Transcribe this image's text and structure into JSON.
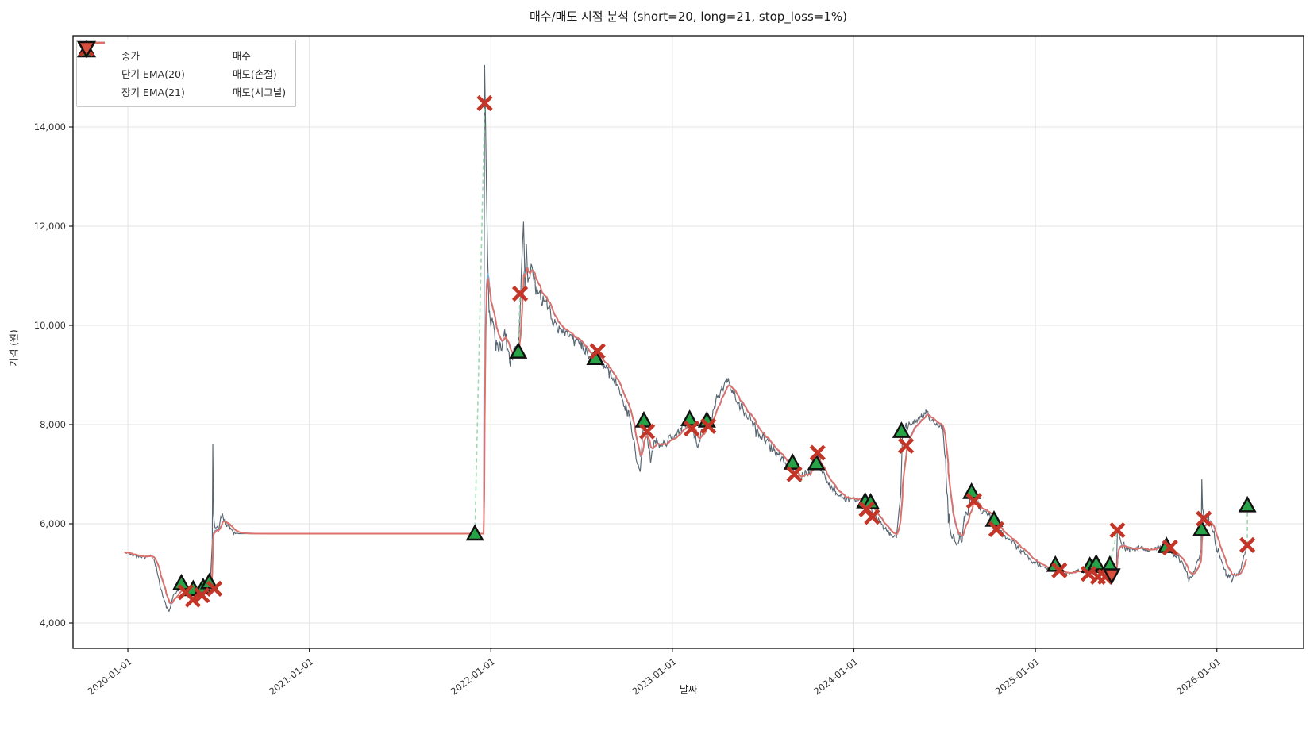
{
  "chart_data": {
    "type": "line",
    "title": "매수/매도 시점 분석 (short=20, long=21, stop_loss=1%)",
    "xlabel": "날짜",
    "ylabel": "가격 (원)",
    "x_tick_labels": [
      "2020-01-01",
      "2021-01-01",
      "2022-01-01",
      "2023-01-01",
      "2024-01-01",
      "2025-01-01",
      "2026-01-01"
    ],
    "x_tick_years": [
      0,
      1,
      2,
      3,
      4,
      5,
      6
    ],
    "y_ticks": [
      4000,
      6000,
      8000,
      10000,
      12000,
      14000
    ],
    "y_tick_labels": [
      "4,000",
      "6,000",
      "8,000",
      "10,000",
      "12,000",
      "14,000"
    ],
    "x_range_years": [
      -0.302,
      6.478
    ],
    "y_range": [
      3488,
      15840
    ],
    "grid": true,
    "legend_position": "upper-left",
    "legend": {
      "lines": [
        {
          "label": "종가",
          "color": "#4a5965"
        },
        {
          "label": "단기 EMA(20)",
          "color": "#6fb0dc"
        },
        {
          "label": "장기 EMA(21)",
          "color": "#df7069"
        }
      ],
      "markers": [
        {
          "label": "매수",
          "type": "triangle-up",
          "fill": "#27a347",
          "edge": "#111111"
        },
        {
          "label": "매도(손절)",
          "type": "x",
          "color": "#c33527"
        },
        {
          "label": "매도(시그널)",
          "type": "triangle-down",
          "fill": "#d94f3d",
          "edge": "#111111"
        }
      ]
    },
    "colors": {
      "close": "#4a5965",
      "ema_short": "#6fb0dc",
      "ema_long": "#df7069",
      "buy": "#27a347",
      "stop_loss": "#c33527",
      "sell_signal": "#d94f3d",
      "connector": "#8fd6a8",
      "grid": "#e3e3e3",
      "spine": "#1c1c1c",
      "tick_text": "#333333"
    },
    "ema_short_span_days": 20,
    "ema_long_span_days": 21,
    "close_control_points": [
      [
        -0.02,
        5420,
        50
      ],
      [
        0.03,
        5380,
        60
      ],
      [
        0.08,
        5330,
        70
      ],
      [
        0.13,
        5350,
        60
      ],
      [
        0.155,
        5150,
        60
      ],
      [
        0.18,
        4700,
        80
      ],
      [
        0.21,
        4350,
        60
      ],
      [
        0.228,
        4240,
        40
      ],
      [
        0.25,
        4550,
        70
      ],
      [
        0.28,
        4700,
        80
      ],
      [
        0.31,
        4750,
        80
      ],
      [
        0.34,
        4500,
        70
      ],
      [
        0.37,
        4600,
        80
      ],
      [
        0.4,
        4650,
        80
      ],
      [
        0.43,
        4700,
        90
      ],
      [
        0.455,
        4850,
        80
      ],
      [
        0.465,
        5600,
        0
      ],
      [
        0.468,
        7600,
        0
      ],
      [
        0.472,
        6200,
        0
      ],
      [
        0.48,
        5900,
        120
      ],
      [
        0.5,
        5850,
        150
      ],
      [
        0.52,
        6150,
        180
      ],
      [
        0.545,
        5950,
        150
      ],
      [
        0.565,
        5900,
        100
      ],
      [
        0.585,
        5820,
        40
      ],
      [
        0.61,
        5800,
        0
      ],
      [
        1.9,
        5800,
        0
      ],
      [
        1.96,
        5800,
        0
      ],
      [
        1.9655,
        15250,
        0
      ],
      [
        1.97,
        14200,
        100
      ],
      [
        1.976,
        12800,
        200
      ],
      [
        1.982,
        11300,
        250
      ],
      [
        1.99,
        10300,
        250
      ],
      [
        2.0,
        9800,
        250
      ],
      [
        2.01,
        10200,
        300
      ],
      [
        2.03,
        9600,
        250
      ],
      [
        2.05,
        9500,
        250
      ],
      [
        2.08,
        9800,
        300
      ],
      [
        2.11,
        9300,
        250
      ],
      [
        2.135,
        9550,
        200
      ],
      [
        2.149,
        9460,
        80
      ],
      [
        2.158,
        10000,
        100
      ],
      [
        2.166,
        10800,
        150
      ],
      [
        2.174,
        11600,
        120
      ],
      [
        2.18,
        12080,
        50
      ],
      [
        2.188,
        10850,
        150
      ],
      [
        2.196,
        11650,
        80
      ],
      [
        2.205,
        10850,
        250
      ],
      [
        2.222,
        11230,
        150
      ],
      [
        2.245,
        10750,
        200
      ],
      [
        2.275,
        10550,
        250
      ],
      [
        2.31,
        10430,
        200
      ],
      [
        2.35,
        10080,
        200
      ],
      [
        2.4,
        9880,
        200
      ],
      [
        2.45,
        9750,
        200
      ],
      [
        2.5,
        9580,
        180
      ],
      [
        2.545,
        9400,
        180
      ],
      [
        2.576,
        9340,
        100
      ],
      [
        2.586,
        9480,
        80
      ],
      [
        2.61,
        9280,
        180
      ],
      [
        2.65,
        9080,
        200
      ],
      [
        2.69,
        8850,
        200
      ],
      [
        2.72,
        8550,
        200
      ],
      [
        2.76,
        8150,
        250
      ],
      [
        2.795,
        7500,
        250
      ],
      [
        2.822,
        7060,
        120
      ],
      [
        2.843,
        8080,
        100
      ],
      [
        2.858,
        7860,
        100
      ],
      [
        2.878,
        7280,
        180
      ],
      [
        2.91,
        7700,
        220
      ],
      [
        2.95,
        7620,
        200
      ],
      [
        3.0,
        7720,
        200
      ],
      [
        3.05,
        7900,
        200
      ],
      [
        3.095,
        8110,
        120
      ],
      [
        3.115,
        7920,
        120
      ],
      [
        3.135,
        7520,
        150
      ],
      [
        3.165,
        7880,
        200
      ],
      [
        3.19,
        8080,
        120
      ],
      [
        3.205,
        7970,
        120
      ],
      [
        3.23,
        8400,
        200
      ],
      [
        3.27,
        8750,
        200
      ],
      [
        3.3,
        8870,
        150
      ],
      [
        3.33,
        8680,
        200
      ],
      [
        3.37,
        8420,
        180
      ],
      [
        3.41,
        8200,
        180
      ],
      [
        3.46,
        7900,
        180
      ],
      [
        3.51,
        7680,
        200
      ],
      [
        3.56,
        7480,
        180
      ],
      [
        3.61,
        7260,
        150
      ],
      [
        3.645,
        7080,
        120
      ],
      [
        3.662,
        7230,
        80
      ],
      [
        3.672,
        7010,
        80
      ],
      [
        3.7,
        6890,
        140
      ],
      [
        3.73,
        7000,
        160
      ],
      [
        3.765,
        7100,
        200
      ],
      [
        3.788,
        7350,
        280
      ],
      [
        3.8,
        7420,
        100
      ],
      [
        3.815,
        7100,
        150
      ],
      [
        3.85,
        6850,
        140
      ],
      [
        3.9,
        6620,
        130
      ],
      [
        3.95,
        6520,
        110
      ],
      [
        4.0,
        6480,
        100
      ],
      [
        4.045,
        6460,
        100
      ],
      [
        4.065,
        6440,
        80
      ],
      [
        4.09,
        6380,
        100
      ],
      [
        4.12,
        6160,
        130
      ],
      [
        4.16,
        5940,
        130
      ],
      [
        4.2,
        5780,
        110
      ],
      [
        4.235,
        5760,
        90
      ],
      [
        4.258,
        6600,
        0
      ],
      [
        4.268,
        7880,
        60
      ],
      [
        4.29,
        7950,
        120
      ],
      [
        4.33,
        8060,
        120
      ],
      [
        4.37,
        8120,
        130
      ],
      [
        4.395,
        8280,
        200
      ],
      [
        4.42,
        8100,
        130
      ],
      [
        4.455,
        8010,
        90
      ],
      [
        4.49,
        7930,
        70
      ],
      [
        4.505,
        7300,
        250
      ],
      [
        4.52,
        6100,
        350
      ],
      [
        4.545,
        5750,
        300
      ],
      [
        4.575,
        5550,
        280
      ],
      [
        4.61,
        6050,
        250
      ],
      [
        4.638,
        6450,
        280
      ],
      [
        4.655,
        6600,
        120
      ],
      [
        4.668,
        6450,
        140
      ],
      [
        4.7,
        6280,
        140
      ],
      [
        4.74,
        6180,
        120
      ],
      [
        4.768,
        6060,
        90
      ],
      [
        4.783,
        5880,
        90
      ],
      [
        4.82,
        5800,
        110
      ],
      [
        4.87,
        5650,
        120
      ],
      [
        4.92,
        5450,
        120
      ],
      [
        4.97,
        5280,
        100
      ],
      [
        5.01,
        5180,
        90
      ],
      [
        5.06,
        5090,
        90
      ],
      [
        5.105,
        5160,
        70
      ],
      [
        5.12,
        5040,
        80
      ],
      [
        5.17,
        4990,
        80
      ],
      [
        5.22,
        5030,
        80
      ],
      [
        5.27,
        5060,
        80
      ],
      [
        5.31,
        5110,
        80
      ],
      [
        5.35,
        4990,
        80
      ],
      [
        5.39,
        5030,
        80
      ],
      [
        5.43,
        5080,
        70
      ],
      [
        5.447,
        5120,
        0
      ],
      [
        5.452,
        5870,
        0
      ],
      [
        5.458,
        5820,
        0
      ],
      [
        5.475,
        5600,
        140
      ],
      [
        5.52,
        5470,
        100
      ],
      [
        5.57,
        5510,
        100
      ],
      [
        5.62,
        5460,
        100
      ],
      [
        5.66,
        5510,
        100
      ],
      [
        5.7,
        5540,
        90
      ],
      [
        5.725,
        5540,
        70
      ],
      [
        5.75,
        5420,
        110
      ],
      [
        5.79,
        5310,
        100
      ],
      [
        5.825,
        5100,
        130
      ],
      [
        5.845,
        4880,
        120
      ],
      [
        5.87,
        4990,
        120
      ],
      [
        5.9,
        5280,
        90
      ],
      [
        5.913,
        5480,
        0
      ],
      [
        5.917,
        6900,
        0
      ],
      [
        5.921,
        6300,
        0
      ],
      [
        5.93,
        6080,
        150
      ],
      [
        5.955,
        6100,
        140
      ],
      [
        5.985,
        5800,
        180
      ],
      [
        6.015,
        5300,
        160
      ],
      [
        6.05,
        5000,
        130
      ],
      [
        6.08,
        4900,
        110
      ],
      [
        6.11,
        4950,
        110
      ],
      [
        6.135,
        5120,
        90
      ],
      [
        6.155,
        5420,
        60
      ],
      [
        6.163,
        5500,
        0
      ]
    ],
    "markers": {
      "buy": [
        [
          0.295,
          4800
        ],
        [
          0.36,
          4680
        ],
        [
          0.415,
          4720
        ],
        [
          0.448,
          4820
        ],
        [
          1.912,
          5800
        ],
        [
          2.151,
          9470
        ],
        [
          2.576,
          9340
        ],
        [
          2.843,
          8080
        ],
        [
          3.095,
          8110
        ],
        [
          3.19,
          8080
        ],
        [
          3.662,
          7230
        ],
        [
          3.793,
          7220
        ],
        [
          4.062,
          6450
        ],
        [
          4.092,
          6430
        ],
        [
          4.262,
          7870
        ],
        [
          4.648,
          6640
        ],
        [
          4.772,
          6080
        ],
        [
          5.11,
          5170
        ],
        [
          5.3,
          5150
        ],
        [
          5.335,
          5200
        ],
        [
          5.41,
          5170
        ],
        [
          5.722,
          5550
        ],
        [
          5.916,
          5890
        ],
        [
          6.168,
          6370
        ]
      ],
      "stop_loss": [
        [
          0.318,
          4620
        ],
        [
          0.358,
          4470
        ],
        [
          0.408,
          4560
        ],
        [
          0.477,
          4690
        ],
        [
          1.966,
          14480
        ],
        [
          2.161,
          10640
        ],
        [
          2.588,
          9480
        ],
        [
          2.861,
          7860
        ],
        [
          3.106,
          7920
        ],
        [
          3.198,
          7970
        ],
        [
          3.672,
          7000
        ],
        [
          3.8,
          7430
        ],
        [
          4.07,
          6290
        ],
        [
          4.1,
          6140
        ],
        [
          4.287,
          7570
        ],
        [
          4.662,
          6460
        ],
        [
          4.785,
          5890
        ],
        [
          5.132,
          5060
        ],
        [
          5.293,
          4990
        ],
        [
          5.345,
          4930
        ],
        [
          5.385,
          4930
        ],
        [
          5.452,
          5870
        ],
        [
          5.742,
          5520
        ],
        [
          5.928,
          6100
        ],
        [
          6.168,
          5570
        ]
      ],
      "sell_signal": [
        [
          5.42,
          4960
        ]
      ]
    },
    "trade_connectors": [
      [
        1.912,
        5800,
        1.966,
        14480
      ],
      [
        2.151,
        9470,
        2.161,
        10640
      ],
      [
        5.41,
        5170,
        5.452,
        5870
      ],
      [
        5.916,
        5890,
        5.928,
        6100
      ],
      [
        6.168,
        5570,
        6.168,
        6370
      ]
    ]
  }
}
